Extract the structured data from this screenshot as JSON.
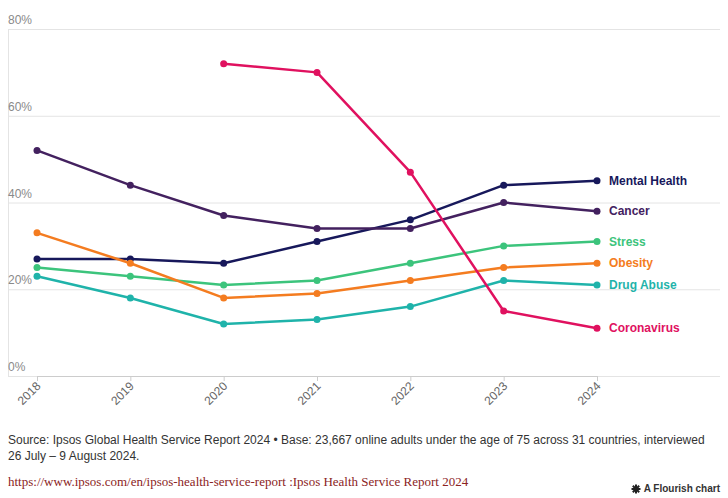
{
  "chart_data": {
    "type": "line",
    "x": [
      2018,
      2019,
      2020,
      2021,
      2022,
      2023,
      2024
    ],
    "xlim": [
      2018,
      2024
    ],
    "xticks": [
      2018,
      2019,
      2020,
      2021,
      2022,
      2023,
      2024
    ],
    "ylim": [
      0,
      80
    ],
    "yticks": [
      {
        "value": 0,
        "label": "0%"
      },
      {
        "value": 20,
        "label": "20%"
      },
      {
        "value": 40,
        "label": "40%"
      },
      {
        "value": 60,
        "label": "60%"
      },
      {
        "value": 80,
        "label": "80%"
      }
    ],
    "grid": true,
    "marker": "circle",
    "series": [
      {
        "name": "Mental Health",
        "color": "#17185b",
        "values": [
          27,
          27,
          26,
          31,
          36,
          44,
          45
        ]
      },
      {
        "name": "Cancer",
        "color": "#43215f",
        "values": [
          52,
          44,
          37,
          34,
          34,
          40,
          38
        ]
      },
      {
        "name": "Stress",
        "color": "#3cc47c",
        "values": [
          25,
          23,
          21,
          22,
          26,
          30,
          31
        ]
      },
      {
        "name": "Obesity",
        "color": "#f47c20",
        "values": [
          33,
          26,
          18,
          19,
          22,
          25,
          26
        ]
      },
      {
        "name": "Drug Abuse",
        "color": "#1fb3aa",
        "values": [
          23,
          18,
          12,
          13,
          16,
          22,
          21
        ]
      },
      {
        "name": "Coronavirus",
        "color": "#e0115f",
        "values": [
          null,
          null,
          72,
          70,
          47,
          15,
          11
        ]
      }
    ],
    "source": "Source: Ipsos Global Health Service Report 2024 • Base: 23,667 online adults under the age of 75 across 31 countries, interviewed 26 July – 9 August 2024.",
    "link": "https://www.ipsos.com/en/ipsos-health-service-report :Ipsos Health Service Report 2024",
    "credit": "A Flourish chart"
  }
}
